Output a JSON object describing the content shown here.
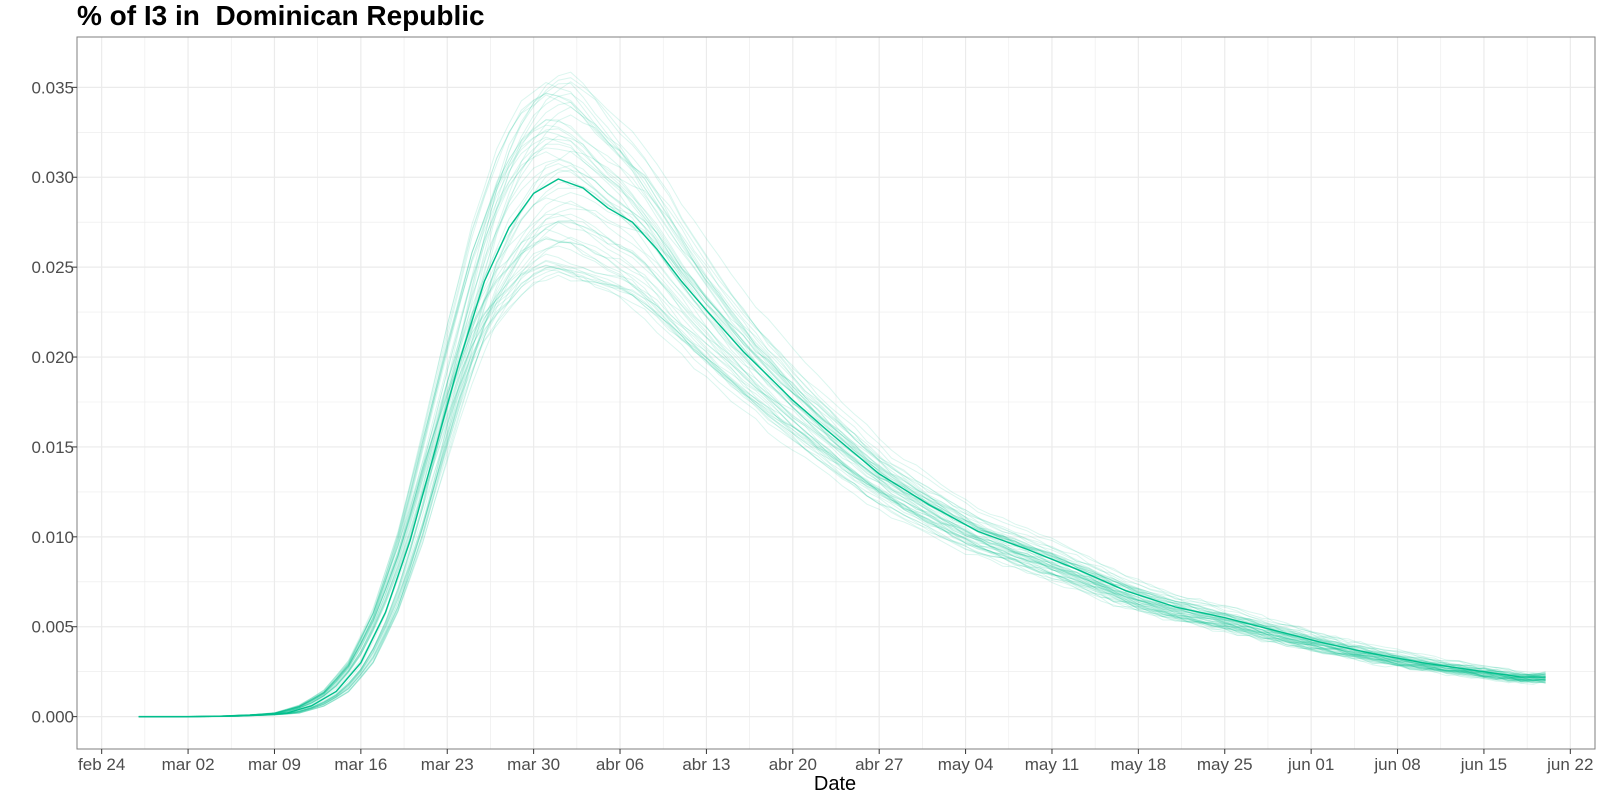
{
  "chart_data": {
    "type": "line",
    "title": "% of I3 in  Dominican Republic",
    "xlabel": "Date",
    "ylabel": "",
    "x_start": "2020-02-27",
    "x_end": "2020-06-20",
    "xlim": [
      "2020-02-22",
      "2020-06-24"
    ],
    "ylim": [
      -0.0018,
      0.0378
    ],
    "yticks": [
      0.0,
      0.005,
      0.01,
      0.015,
      0.02,
      0.025,
      0.03,
      0.035
    ],
    "ytick_labels": [
      "0.000",
      "0.005",
      "0.010",
      "0.015",
      "0.020",
      "0.025",
      "0.030",
      "0.035"
    ],
    "xticks": [
      "2020-02-24",
      "2020-03-02",
      "2020-03-09",
      "2020-03-16",
      "2020-03-23",
      "2020-03-30",
      "2020-04-06",
      "2020-04-13",
      "2020-04-20",
      "2020-04-27",
      "2020-05-04",
      "2020-05-11",
      "2020-05-18",
      "2020-05-25",
      "2020-06-01",
      "2020-06-08",
      "2020-06-15",
      "2020-06-22"
    ],
    "xtick_labels": [
      "feb 24",
      "mar 02",
      "mar 09",
      "mar 16",
      "mar 23",
      "mar 30",
      "abr 06",
      "abr 13",
      "abr 20",
      "abr 27",
      "may 04",
      "may 11",
      "may 18",
      "may 25",
      "jun 01",
      "jun 08",
      "jun 15",
      "jun 22"
    ],
    "grid": true,
    "legend": "none",
    "colors": {
      "line": "#00BF8C",
      "background": "#FFFFFF",
      "grid": "#EBEBEB",
      "border": "#7F7F7F"
    },
    "series": [
      {
        "x": [
          "2020-02-27",
          "2020-03-02",
          "2020-03-05",
          "2020-03-08",
          "2020-03-10",
          "2020-03-12",
          "2020-03-14",
          "2020-03-16",
          "2020-03-18",
          "2020-03-20",
          "2020-03-22",
          "2020-03-24",
          "2020-03-26",
          "2020-03-28",
          "2020-03-30",
          "2020-04-01",
          "2020-04-03",
          "2020-04-05",
          "2020-04-07",
          "2020-04-09",
          "2020-04-11",
          "2020-04-13",
          "2020-04-16",
          "2020-04-20",
          "2020-04-23",
          "2020-04-27",
          "2020-05-01",
          "2020-05-05",
          "2020-05-09",
          "2020-05-13",
          "2020-05-17",
          "2020-05-21",
          "2020-05-25",
          "2020-05-29",
          "2020-06-02",
          "2020-06-06",
          "2020-06-10",
          "2020-06-14",
          "2020-06-18",
          "2020-06-20"
        ],
        "values": [
          0.0,
          0.0,
          2e-05,
          0.0001,
          0.0002,
          0.0006,
          0.0014,
          0.003,
          0.0058,
          0.0098,
          0.0148,
          0.0198,
          0.0242,
          0.0272,
          0.0291,
          0.0299,
          0.0294,
          0.0283,
          0.0275,
          0.026,
          0.0242,
          0.0226,
          0.0203,
          0.0176,
          0.0158,
          0.0135,
          0.0118,
          0.0103,
          0.0093,
          0.0082,
          0.007,
          0.0061,
          0.0055,
          0.0048,
          0.0041,
          0.0035,
          0.003,
          0.0026,
          0.0022,
          0.0022
        ]
      }
    ],
    "ensemble_count": 60
  }
}
